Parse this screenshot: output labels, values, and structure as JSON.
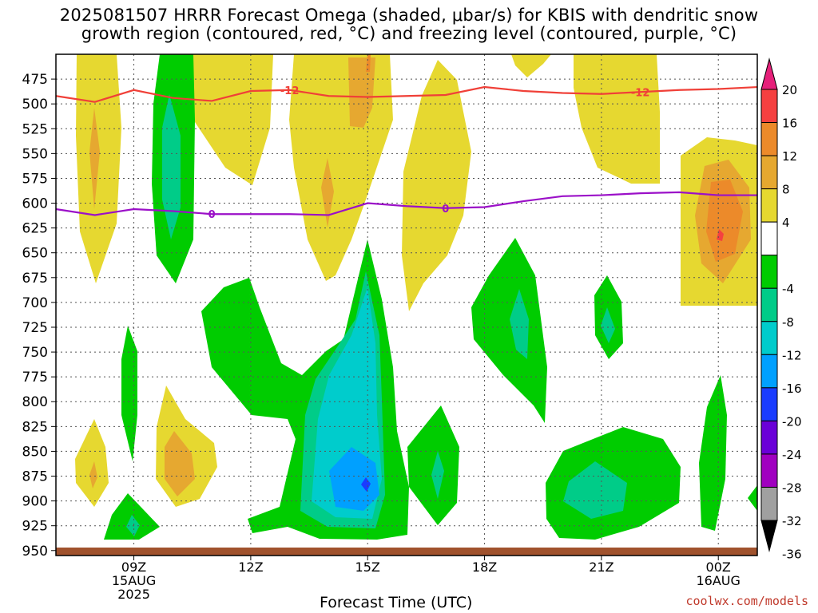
{
  "title_line1": "2025081507 HRRR Forecast Omega (shaded, μbar/s) for KBIS with dendritic snow",
  "title_line2": "growth region (contoured, red, °C) and freezing level (contoured, purple, °C)",
  "credit": "coolwx.com/models",
  "chart_data": {
    "type": "contour",
    "title": "2025081507 HRRR Forecast Omega (shaded, μbar/s) for KBIS with dendritic snow growth region (contoured, red, °C) and freezing level (contoured, purple, °C)",
    "xlabel": "Forecast Time (UTC)",
    "ylabel": "",
    "x_range_hours_utc": [
      7,
      25
    ],
    "y_range_mb": [
      450,
      955
    ],
    "y_inverted": true,
    "x_ticks": [
      {
        "hour": 9,
        "label": "09Z",
        "sub1": "15AUG",
        "sub2": "2025"
      },
      {
        "hour": 12,
        "label": "12Z",
        "sub1": "",
        "sub2": ""
      },
      {
        "hour": 15,
        "label": "15Z",
        "sub1": "",
        "sub2": ""
      },
      {
        "hour": 18,
        "label": "18Z",
        "sub1": "",
        "sub2": ""
      },
      {
        "hour": 21,
        "label": "21Z",
        "sub1": "",
        "sub2": ""
      },
      {
        "hour": 24,
        "label": "00Z",
        "sub1": "16AUG",
        "sub2": ""
      }
    ],
    "y_ticks": [
      475,
      500,
      525,
      550,
      575,
      600,
      625,
      650,
      675,
      700,
      725,
      750,
      775,
      800,
      825,
      850,
      875,
      900,
      925,
      950
    ],
    "grid": true,
    "colorbar": {
      "levels": [
        -36,
        -32,
        -28,
        -24,
        -20,
        -16,
        -12,
        -8,
        -4,
        4,
        8,
        12,
        16,
        20
      ],
      "labels": [
        "20",
        "16",
        "12",
        "8",
        "4",
        "-4",
        "-8",
        "-12",
        "-16",
        "-20",
        "-24",
        "-28",
        "-32",
        "-36"
      ],
      "colors_top_to_bottom": [
        "#e6207a",
        "#f54040",
        "#ec8a2a",
        "#e6a830",
        "#e6d830",
        "#ffffff",
        "#00cc00",
        "#00cc88",
        "#00cccc",
        "#00a0ff",
        "#1a3cff",
        "#6a00d8",
        "#a000c0",
        "#a0a0a0",
        "#000000"
      ]
    },
    "contours": [
      {
        "name": "-12",
        "color": "#f04038",
        "label": "-12",
        "points": [
          [
            7.0,
            492
          ],
          [
            8.0,
            498
          ],
          [
            9.0,
            486
          ],
          [
            10.0,
            494
          ],
          [
            11.0,
            497
          ],
          [
            12.0,
            487
          ],
          [
            13.0,
            486
          ],
          [
            14.0,
            492
          ],
          [
            15.0,
            493
          ],
          [
            16.0,
            492
          ],
          [
            17.0,
            491
          ],
          [
            18.0,
            483
          ],
          [
            19.0,
            487
          ],
          [
            20.0,
            489
          ],
          [
            21.0,
            490
          ],
          [
            22.0,
            488
          ],
          [
            23.0,
            486
          ],
          [
            24.0,
            485
          ],
          [
            25.0,
            483
          ]
        ]
      },
      {
        "name": "0",
        "color": "#9b10c8",
        "label": "0",
        "points": [
          [
            7.0,
            606
          ],
          [
            8.0,
            612
          ],
          [
            9.0,
            606
          ],
          [
            10.0,
            608
          ],
          [
            11.0,
            611
          ],
          [
            12.0,
            611
          ],
          [
            13.0,
            611
          ],
          [
            14.0,
            612
          ],
          [
            15.0,
            600
          ],
          [
            16.0,
            603
          ],
          [
            17.0,
            605
          ],
          [
            18.0,
            604
          ],
          [
            19.0,
            598
          ],
          [
            20.0,
            593
          ],
          [
            21.0,
            592
          ],
          [
            22.0,
            590
          ],
          [
            23.0,
            589
          ],
          [
            24.0,
            592
          ],
          [
            25.0,
            592
          ]
        ]
      }
    ],
    "surface_band_mb": [
      950,
      955
    ]
  }
}
